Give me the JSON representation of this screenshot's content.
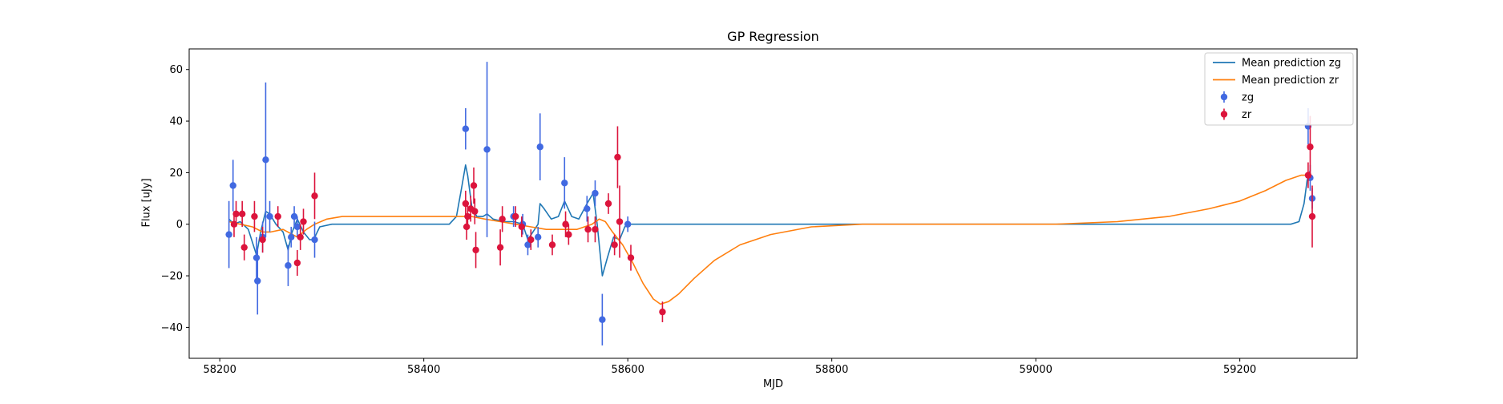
{
  "chart_data": {
    "type": "scatter",
    "title": "GP Regression",
    "xlabel": "MJD",
    "ylabel": "Flux [uJy]",
    "xlim": [
      58170,
      59315
    ],
    "ylim": [
      -52,
      68
    ],
    "x_ticks": [
      58200,
      58400,
      58600,
      58800,
      59000,
      59200
    ],
    "y_ticks": [
      -40,
      -20,
      0,
      20,
      40,
      60
    ],
    "grid": false,
    "legend_position": "top-right",
    "colors": {
      "zg_line": "#1f77b4",
      "zr_line": "#ff7f0e",
      "zg_points": "#4169e1",
      "zr_points": "#dc143c"
    },
    "legend": [
      {
        "label": "Mean prediction zg",
        "kind": "line",
        "color": "#1f77b4"
      },
      {
        "label": "Mean prediction zr",
        "kind": "line",
        "color": "#ff7f0e"
      },
      {
        "label": "zg",
        "kind": "errorbar",
        "color": "#4169e1"
      },
      {
        "label": "zr",
        "kind": "errorbar",
        "color": "#dc143c"
      }
    ],
    "series": [
      {
        "name": "zg",
        "kind": "errorbar",
        "points": [
          {
            "x": 58209,
            "y": -4,
            "err": 13
          },
          {
            "x": 58213,
            "y": 15,
            "err": 10
          },
          {
            "x": 58236,
            "y": -13,
            "err": 8
          },
          {
            "x": 58237,
            "y": -22,
            "err": 13
          },
          {
            "x": 58242,
            "y": -5,
            "err": 6
          },
          {
            "x": 58245,
            "y": 25,
            "err": 30
          },
          {
            "x": 58249,
            "y": 3,
            "err": 6
          },
          {
            "x": 58267,
            "y": -16,
            "err": 8
          },
          {
            "x": 58270,
            "y": -5,
            "err": 4
          },
          {
            "x": 58273,
            "y": 3,
            "err": 4
          },
          {
            "x": 58276,
            "y": -1,
            "err": 4
          },
          {
            "x": 58293,
            "y": -6,
            "err": 7
          },
          {
            "x": 58441,
            "y": 37,
            "err": 8
          },
          {
            "x": 58462,
            "y": 29,
            "err": 34
          },
          {
            "x": 58488,
            "y": 3,
            "err": 4
          },
          {
            "x": 58497,
            "y": 0,
            "err": 4
          },
          {
            "x": 58502,
            "y": -8,
            "err": 4
          },
          {
            "x": 58512,
            "y": -5,
            "err": 4
          },
          {
            "x": 58514,
            "y": 30,
            "err": 13
          },
          {
            "x": 58538,
            "y": 16,
            "err": 10
          },
          {
            "x": 58560,
            "y": 6,
            "err": 5
          },
          {
            "x": 58568,
            "y": 12,
            "err": 5
          },
          {
            "x": 58575,
            "y": -37,
            "err": 10
          },
          {
            "x": 58600,
            "y": 0,
            "err": 3
          },
          {
            "x": 59267,
            "y": 38,
            "err": 7
          },
          {
            "x": 59269,
            "y": 18,
            "err": 5
          },
          {
            "x": 59271,
            "y": 10,
            "err": 4
          }
        ]
      },
      {
        "name": "zr",
        "kind": "errorbar",
        "points": [
          {
            "x": 58214,
            "y": 0,
            "err": 5
          },
          {
            "x": 58216,
            "y": 4,
            "err": 5
          },
          {
            "x": 58222,
            "y": 4,
            "err": 5
          },
          {
            "x": 58224,
            "y": -9,
            "err": 5
          },
          {
            "x": 58234,
            "y": 3,
            "err": 6
          },
          {
            "x": 58242,
            "y": -6,
            "err": 5
          },
          {
            "x": 58257,
            "y": 3,
            "err": 4
          },
          {
            "x": 58276,
            "y": -15,
            "err": 5
          },
          {
            "x": 58279,
            "y": -5,
            "err": 5
          },
          {
            "x": 58282,
            "y": 1,
            "err": 5
          },
          {
            "x": 58293,
            "y": 11,
            "err": 9
          },
          {
            "x": 58441,
            "y": 8,
            "err": 5
          },
          {
            "x": 58442,
            "y": -1,
            "err": 5
          },
          {
            "x": 58443,
            "y": 3,
            "err": 5
          },
          {
            "x": 58446,
            "y": 6,
            "err": 5
          },
          {
            "x": 58449,
            "y": 15,
            "err": 7
          },
          {
            "x": 58450,
            "y": 5,
            "err": 5
          },
          {
            "x": 58451,
            "y": -10,
            "err": 7
          },
          {
            "x": 58475,
            "y": -9,
            "err": 7
          },
          {
            "x": 58477,
            "y": 2,
            "err": 5
          },
          {
            "x": 58490,
            "y": 3,
            "err": 4
          },
          {
            "x": 58496,
            "y": -1,
            "err": 4
          },
          {
            "x": 58505,
            "y": -6,
            "err": 4
          },
          {
            "x": 58526,
            "y": -8,
            "err": 4
          },
          {
            "x": 58539,
            "y": 0,
            "err": 5
          },
          {
            "x": 58542,
            "y": -4,
            "err": 4
          },
          {
            "x": 58561,
            "y": -2,
            "err": 5
          },
          {
            "x": 58568,
            "y": -2,
            "err": 5
          },
          {
            "x": 58581,
            "y": 8,
            "err": 4
          },
          {
            "x": 58587,
            "y": -8,
            "err": 4
          },
          {
            "x": 58590,
            "y": 26,
            "err": 12
          },
          {
            "x": 58592,
            "y": 1,
            "err": 14
          },
          {
            "x": 58603,
            "y": -13,
            "err": 5
          },
          {
            "x": 58634,
            "y": -34,
            "err": 4
          },
          {
            "x": 59267,
            "y": 19,
            "err": 5
          },
          {
            "x": 59269,
            "y": 30,
            "err": 12
          },
          {
            "x": 59271,
            "y": 3,
            "err": 12
          }
        ]
      },
      {
        "name": "Mean prediction zg",
        "kind": "line",
        "points": [
          [
            58209,
            2
          ],
          [
            58214,
            0
          ],
          [
            58220,
            1
          ],
          [
            58228,
            -2
          ],
          [
            58236,
            -12
          ],
          [
            58240,
            -3
          ],
          [
            58245,
            5
          ],
          [
            58249,
            4
          ],
          [
            58255,
            0
          ],
          [
            58262,
            -3
          ],
          [
            58267,
            -10
          ],
          [
            58271,
            -3
          ],
          [
            58276,
            2
          ],
          [
            58282,
            -3
          ],
          [
            58288,
            -6
          ],
          [
            58292,
            -6
          ],
          [
            58298,
            -1
          ],
          [
            58310,
            0
          ],
          [
            58400,
            0
          ],
          [
            58425,
            0
          ],
          [
            58432,
            3
          ],
          [
            58437,
            14
          ],
          [
            58441,
            23
          ],
          [
            58443,
            19
          ],
          [
            58447,
            7
          ],
          [
            58452,
            3
          ],
          [
            58458,
            3
          ],
          [
            58462,
            4
          ],
          [
            58468,
            2
          ],
          [
            58478,
            1
          ],
          [
            58488,
            1
          ],
          [
            58497,
            0
          ],
          [
            58502,
            -6
          ],
          [
            58507,
            -3
          ],
          [
            58512,
            0
          ],
          [
            58514,
            8
          ],
          [
            58518,
            6
          ],
          [
            58525,
            2
          ],
          [
            58532,
            3
          ],
          [
            58538,
            9
          ],
          [
            58545,
            3
          ],
          [
            58552,
            2
          ],
          [
            58560,
            8
          ],
          [
            58566,
            12
          ],
          [
            58570,
            0
          ],
          [
            58575,
            -20
          ],
          [
            58580,
            -13
          ],
          [
            58586,
            -5
          ],
          [
            58592,
            -6
          ],
          [
            58597,
            -1
          ],
          [
            58603,
            0
          ],
          [
            58650,
            0
          ],
          [
            59100,
            0
          ],
          [
            59230,
            0
          ],
          [
            59250,
            0
          ],
          [
            59258,
            1
          ],
          [
            59263,
            8
          ],
          [
            59266,
            17
          ],
          [
            59269,
            21
          ]
        ]
      },
      {
        "name": "Mean prediction zr",
        "kind": "line",
        "points": [
          [
            58209,
            1
          ],
          [
            58220,
            0
          ],
          [
            58232,
            -1
          ],
          [
            58242,
            -3
          ],
          [
            58250,
            -3
          ],
          [
            58262,
            -2
          ],
          [
            58276,
            -5
          ],
          [
            58285,
            -2
          ],
          [
            58293,
            0
          ],
          [
            58305,
            2
          ],
          [
            58320,
            3
          ],
          [
            58345,
            3
          ],
          [
            58375,
            3
          ],
          [
            58410,
            3
          ],
          [
            58435,
            3
          ],
          [
            58447,
            3
          ],
          [
            58460,
            2
          ],
          [
            58475,
            1
          ],
          [
            58490,
            0
          ],
          [
            58505,
            -1
          ],
          [
            58520,
            -2
          ],
          [
            58535,
            -2
          ],
          [
            58550,
            -2
          ],
          [
            58565,
            0
          ],
          [
            58572,
            2
          ],
          [
            58578,
            1
          ],
          [
            58585,
            -3
          ],
          [
            58595,
            -8
          ],
          [
            58605,
            -15
          ],
          [
            58615,
            -23
          ],
          [
            58625,
            -29
          ],
          [
            58632,
            -31
          ],
          [
            58640,
            -30
          ],
          [
            58650,
            -27
          ],
          [
            58665,
            -21
          ],
          [
            58685,
            -14
          ],
          [
            58710,
            -8
          ],
          [
            58740,
            -4
          ],
          [
            58780,
            -1
          ],
          [
            58830,
            0
          ],
          [
            58900,
            0
          ],
          [
            58960,
            0
          ],
          [
            59020,
            0
          ],
          [
            59080,
            1
          ],
          [
            59130,
            3
          ],
          [
            59170,
            6
          ],
          [
            59200,
            9
          ],
          [
            59225,
            13
          ],
          [
            59245,
            17
          ],
          [
            59260,
            19
          ],
          [
            59269,
            19
          ]
        ]
      }
    ]
  }
}
